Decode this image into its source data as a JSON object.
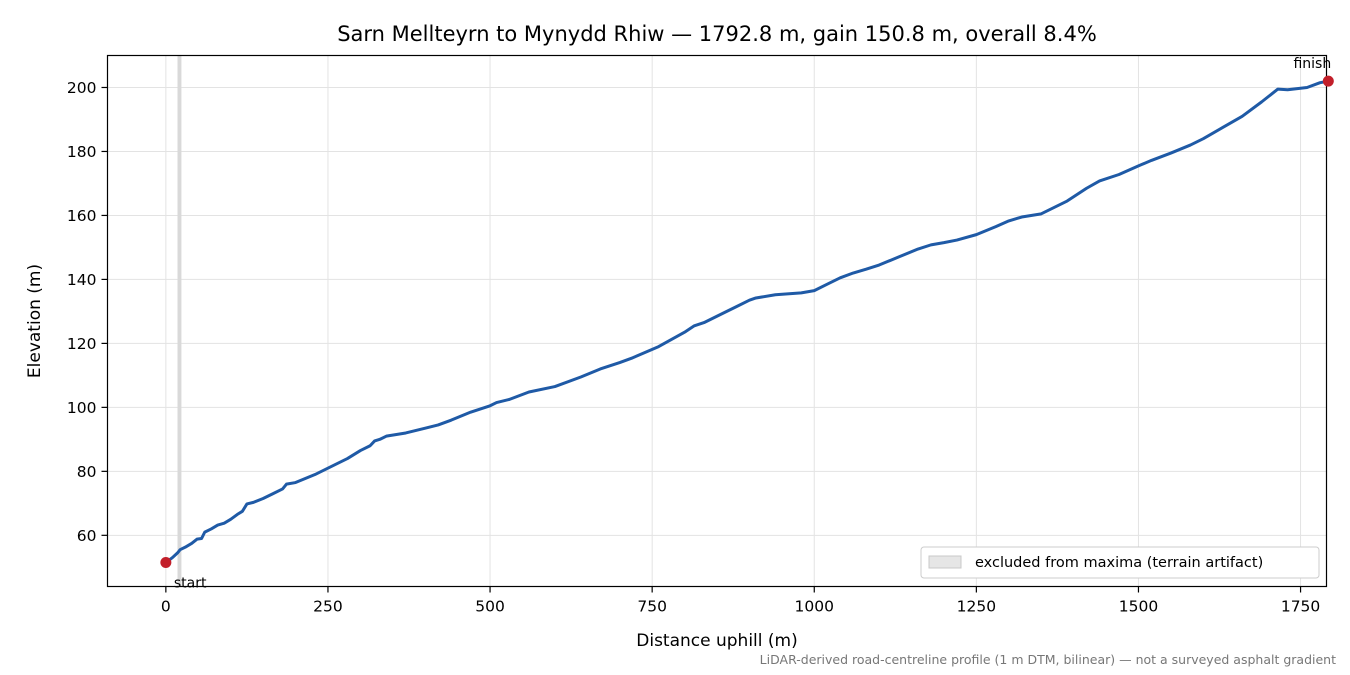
{
  "chart_data": {
    "type": "line",
    "title": "Sarn Mellteyrn to Mynydd Rhiw — 1792.8 m, gain 150.8 m, overall 8.4%",
    "xlabel": "Distance uphill (m)",
    "ylabel": "Elevation (m)",
    "xlim": [
      -90,
      1790
    ],
    "ylim": [
      44,
      210
    ],
    "xticks": [
      0,
      250,
      500,
      750,
      1000,
      1250,
      1500,
      1750
    ],
    "yticks": [
      60,
      80,
      100,
      120,
      140,
      160,
      180,
      200
    ],
    "grid": true,
    "legend_position": "bottom-right",
    "legend": [
      {
        "label": "excluded from maxima (terrain artifact)",
        "color": "#e6e6e6"
      }
    ],
    "colors": {
      "line": "#1f5aa6",
      "markers": "#c21f2a",
      "excluded_band": "#d9d9d9"
    },
    "excluded_band": {
      "x_start": 18,
      "x_end": 24
    },
    "series": [
      {
        "values": [
          [
            0,
            51.5
          ],
          [
            10,
            53
          ],
          [
            18,
            54.5
          ],
          [
            22,
            55.5
          ],
          [
            30,
            56.3
          ],
          [
            40,
            57.5
          ],
          [
            48,
            58.8
          ],
          [
            55,
            59
          ],
          [
            60,
            61
          ],
          [
            70,
            62
          ],
          [
            80,
            63.2
          ],
          [
            90,
            63.8
          ],
          [
            100,
            65
          ],
          [
            110,
            66.5
          ],
          [
            118,
            67.5
          ],
          [
            125,
            69.8
          ],
          [
            135,
            70.3
          ],
          [
            150,
            71.5
          ],
          [
            165,
            73
          ],
          [
            180,
            74.5
          ],
          [
            186,
            76
          ],
          [
            200,
            76.5
          ],
          [
            230,
            79
          ],
          [
            260,
            82
          ],
          [
            280,
            84
          ],
          [
            300,
            86.5
          ],
          [
            315,
            88
          ],
          [
            322,
            89.5
          ],
          [
            330,
            90
          ],
          [
            340,
            91
          ],
          [
            370,
            92
          ],
          [
            400,
            93.5
          ],
          [
            420,
            94.5
          ],
          [
            440,
            96
          ],
          [
            470,
            98.5
          ],
          [
            500,
            100.5
          ],
          [
            510,
            101.5
          ],
          [
            530,
            102.5
          ],
          [
            560,
            104.8
          ],
          [
            600,
            106.5
          ],
          [
            640,
            109.5
          ],
          [
            670,
            112
          ],
          [
            700,
            114
          ],
          [
            720,
            115.5
          ],
          [
            760,
            119
          ],
          [
            800,
            123.5
          ],
          [
            815,
            125.5
          ],
          [
            830,
            126.5
          ],
          [
            860,
            129.5
          ],
          [
            880,
            131.5
          ],
          [
            900,
            133.5
          ],
          [
            910,
            134.2
          ],
          [
            940,
            135.2
          ],
          [
            980,
            135.8
          ],
          [
            1000,
            136.5
          ],
          [
            1020,
            138.5
          ],
          [
            1040,
            140.5
          ],
          [
            1060,
            142
          ],
          [
            1080,
            143.2
          ],
          [
            1100,
            144.5
          ],
          [
            1130,
            147
          ],
          [
            1160,
            149.5
          ],
          [
            1180,
            150.8
          ],
          [
            1200,
            151.5
          ],
          [
            1220,
            152.3
          ],
          [
            1250,
            154
          ],
          [
            1280,
            156.5
          ],
          [
            1300,
            158.3
          ],
          [
            1320,
            159.5
          ],
          [
            1350,
            160.5
          ],
          [
            1370,
            162.5
          ],
          [
            1390,
            164.5
          ],
          [
            1420,
            168.5
          ],
          [
            1440,
            170.8
          ],
          [
            1470,
            172.8
          ],
          [
            1500,
            175.5
          ],
          [
            1520,
            177.2
          ],
          [
            1550,
            179.5
          ],
          [
            1580,
            182
          ],
          [
            1600,
            184
          ],
          [
            1630,
            187.5
          ],
          [
            1660,
            191
          ],
          [
            1690,
            195.5
          ],
          [
            1715,
            199.5
          ],
          [
            1730,
            199.3
          ],
          [
            1760,
            200
          ],
          [
            1780,
            201.5
          ],
          [
            1792.8,
            202
          ]
        ]
      }
    ],
    "annotations": [
      {
        "text": "start",
        "x": 0,
        "y": 51.5
      },
      {
        "text": "finish",
        "x": 1792.8,
        "y": 202
      }
    ]
  },
  "footnote": "LiDAR-derived road-centreline profile (1 m DTM, bilinear) — not a surveyed asphalt gradient"
}
